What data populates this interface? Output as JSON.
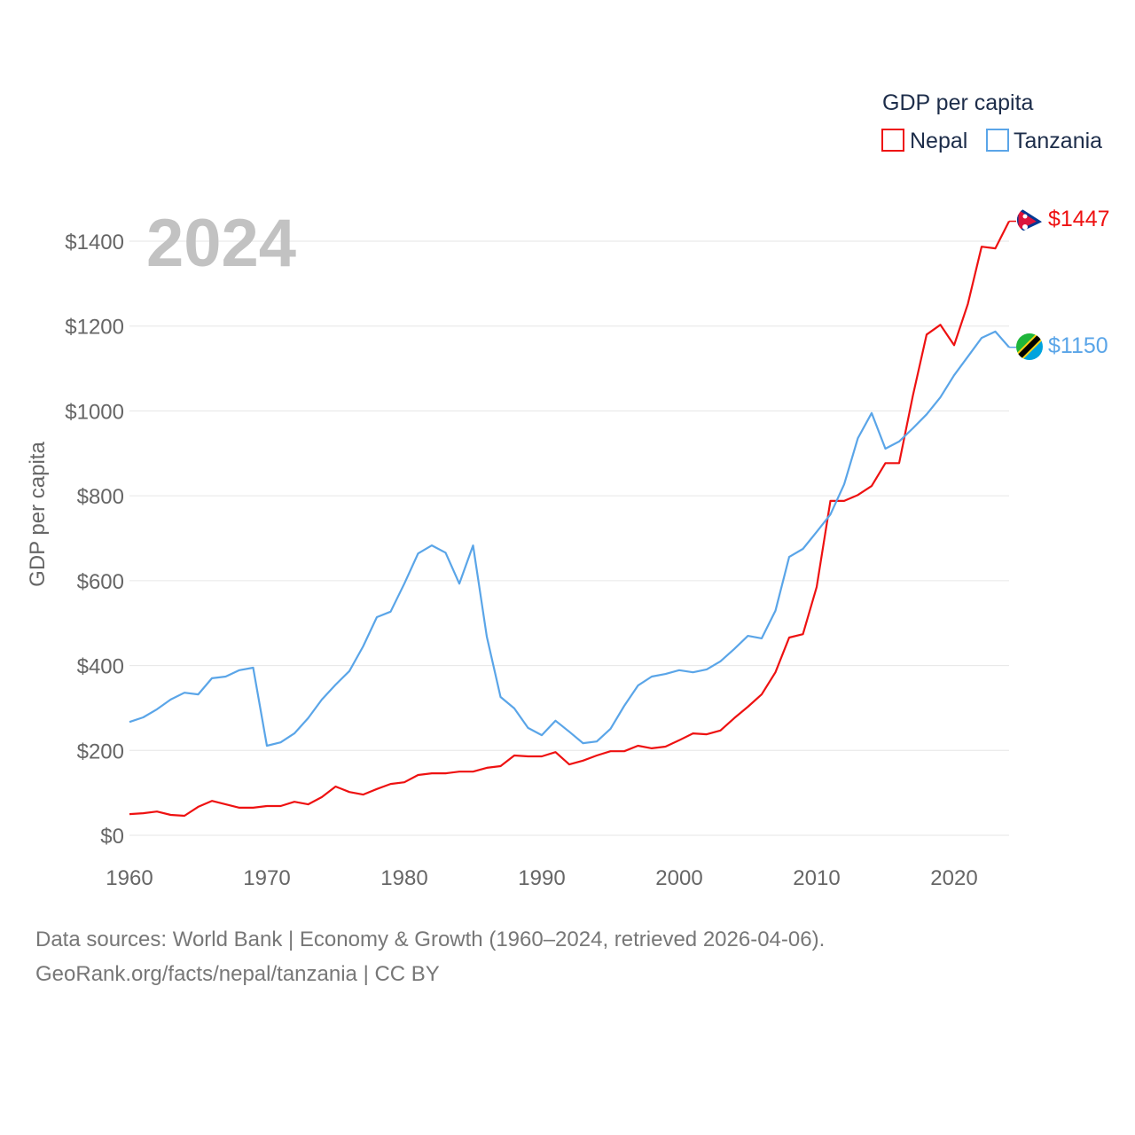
{
  "chart_data": {
    "type": "line",
    "title": "GDP per capita",
    "ylabel": "GDP per capita",
    "xlabel": "",
    "year_label": "2024",
    "xlim": [
      1960,
      2024
    ],
    "ylim": [
      0,
      1500
    ],
    "x_ticks": [
      1960,
      1970,
      1980,
      1990,
      2000,
      2010,
      2020
    ],
    "y_ticks": [
      0,
      200,
      400,
      600,
      800,
      1000,
      1200,
      1400
    ],
    "y_tick_labels": [
      "$0",
      "$200",
      "$400",
      "$600",
      "$800",
      "$1000",
      "$1200",
      "$1400"
    ],
    "grid": true,
    "legend_placement": "top-right",
    "x_start": 1960,
    "series": [
      {
        "name": "Nepal",
        "color": "#ee1111",
        "end_label": "$1447",
        "flag": "nepal-flag",
        "values": [
          50,
          52,
          56,
          48,
          46,
          67,
          81,
          73,
          65,
          65,
          69,
          69,
          79,
          73,
          90,
          115,
          102,
          96,
          109,
          121,
          125,
          142,
          146,
          146,
          150,
          150,
          159,
          163,
          188,
          186,
          186,
          196,
          167,
          176,
          188,
          198,
          198,
          211,
          205,
          209,
          224,
          240,
          238,
          247,
          276,
          303,
          332,
          384,
          466,
          474,
          585,
          788,
          788,
          802,
          823,
          877,
          877,
          1036,
          1180,
          1203,
          1155,
          1252,
          1387,
          1383,
          1447
        ]
      },
      {
        "name": "Tanzania",
        "color": "#5aa5e8",
        "end_label": "$1150",
        "flag": "tanzania-flag",
        "values": [
          267,
          278,
          297,
          320,
          336,
          332,
          370,
          374,
          389,
          395,
          211,
          219,
          240,
          276,
          320,
          355,
          387,
          445,
          514,
          527,
          593,
          664,
          683,
          666,
          593,
          683,
          468,
          326,
          299,
          253,
          236,
          270,
          244,
          217,
          221,
          251,
          305,
          353,
          374,
          380,
          389,
          384,
          391,
          410,
          439,
          470,
          464,
          529,
          656,
          675,
          715,
          756,
          827,
          936,
          995,
          911,
          928,
          959,
          992,
          1032,
          1084,
          1128,
          1172,
          1187,
          1150
        ]
      }
    ]
  },
  "footer": {
    "line1": "Data sources: World Bank | Economy & Growth (1960–2024, retrieved 2026-04-06).",
    "line2": "GeoRank.org/facts/nepal/tanzania | CC BY"
  }
}
